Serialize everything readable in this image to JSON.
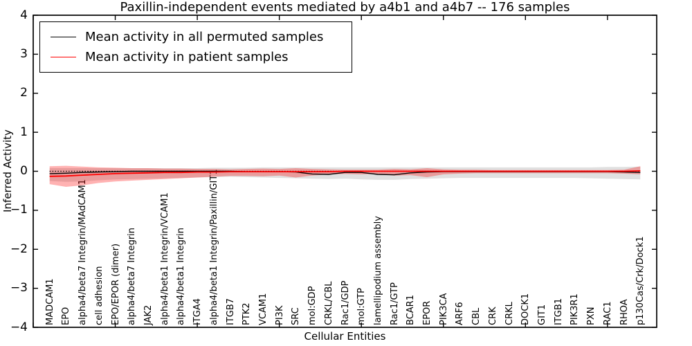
{
  "title": "Paxillin-independent events mediated by a4b1 and a4b7 -- 176 samples",
  "axes": {
    "xlabel": "Cellular Entities",
    "ylabel": "Inferred Activity",
    "ylim": [
      -4,
      4
    ],
    "yticks": [
      -4,
      -3,
      -2,
      -1,
      0,
      1,
      2,
      3,
      4
    ],
    "xlim": [
      0,
      38
    ],
    "xticks": [
      0,
      5,
      10,
      15,
      20,
      25,
      30,
      35
    ],
    "grid": false,
    "zero_reference_line": 0
  },
  "legend": {
    "position": "upper-left",
    "items": [
      {
        "label": "Mean activity in all permuted samples",
        "color": "#000000"
      },
      {
        "label": "Mean activity in patient samples",
        "color": "#ff0000"
      }
    ]
  },
  "colors": {
    "permuted_line": "#000000",
    "patient_line": "#ff0000",
    "permuted_band": "#999999",
    "patient_band": "#ff0000",
    "frame": "#000000",
    "background": "#ffffff"
  },
  "chart_data": {
    "type": "line",
    "title": "Paxillin-independent events mediated by a4b1 and a4b7 -- 176 samples",
    "xlabel": "Cellular Entities",
    "ylabel": "Inferred Activity",
    "ylim": [
      -4,
      4
    ],
    "legend_position": "upper left",
    "categories": [
      "MADCAM1",
      "EPO",
      "alpha4/beta7 Integrin/MAdCAM1",
      "cell adhesion",
      "EPO/EPOR (dimer)",
      "alpha4/beta7 Integrin",
      "JAK2",
      "alpha4/beta1 Integrin/VCAM1",
      "alpha4/beta1 Integrin",
      "ITGA4",
      "alpha4/beta1 Integrin/Paxillin/GIT1",
      "ITGB7",
      "PTK2",
      "VCAM1",
      "PI3K",
      "SRC",
      "mol:GDP",
      "CRKL/CBL",
      "Rac1/GDP",
      "mol:GTP",
      "lamellipodium assembly",
      "Rac1/GTP",
      "BCAR1",
      "EPOR",
      "PIK3CA",
      "ARF6",
      "CBL",
      "CRK",
      "CRKL",
      "DOCK1",
      "GIT1",
      "ITGB1",
      "PIK3R1",
      "PXN",
      "RAC1",
      "RHOA",
      "p130Cas/Crk/Dock1"
    ],
    "series": [
      {
        "name": "Mean activity in all permuted samples",
        "color": "#000000",
        "values": [
          -0.06,
          -0.05,
          -0.03,
          -0.02,
          -0.01,
          0,
          0,
          0,
          0,
          0,
          0,
          0,
          -0.01,
          -0.01,
          -0.01,
          -0.02,
          -0.07,
          -0.08,
          -0.03,
          -0.03,
          -0.08,
          -0.09,
          -0.04,
          -0.02,
          -0.01,
          -0.01,
          -0.01,
          -0.01,
          -0.01,
          -0.01,
          -0.01,
          -0.01,
          -0.01,
          -0.01,
          -0.01,
          -0.02,
          -0.03
        ]
      },
      {
        "name": "Mean activity in patient samples",
        "color": "#ff0000",
        "values": [
          -0.13,
          -0.12,
          -0.1,
          -0.08,
          -0.06,
          -0.05,
          -0.04,
          -0.03,
          -0.03,
          -0.02,
          -0.02,
          -0.01,
          -0.01,
          -0.01,
          -0.01,
          -0.01,
          -0.01,
          -0.01,
          0,
          0,
          0,
          0,
          0,
          0,
          0,
          0,
          0,
          0,
          0,
          0,
          0,
          0,
          0,
          0,
          0,
          0,
          0.01
        ]
      }
    ],
    "bands": [
      {
        "name": "permuted samples std band",
        "color": "#999999",
        "opacity": 0.3,
        "upper": [
          0.08,
          0.08,
          0.08,
          0.08,
          0.08,
          0.08,
          0.08,
          0.08,
          0.08,
          0.08,
          0.09,
          0.09,
          0.09,
          0.1,
          0.1,
          0.1,
          0.1,
          0.1,
          0.1,
          0.1,
          0.1,
          0.1,
          0.1,
          0.1,
          0.1,
          0.1,
          0.1,
          0.1,
          0.1,
          0.1,
          0.1,
          0.1,
          0.1,
          0.1,
          0.11,
          0.11,
          0.12
        ],
        "lower": [
          -0.25,
          -0.27,
          -0.26,
          -0.23,
          -0.21,
          -0.2,
          -0.19,
          -0.18,
          -0.17,
          -0.16,
          -0.15,
          -0.14,
          -0.15,
          -0.16,
          -0.17,
          -0.18,
          -0.19,
          -0.2,
          -0.19,
          -0.21,
          -0.22,
          -0.22,
          -0.2,
          -0.19,
          -0.18,
          -0.17,
          -0.17,
          -0.17,
          -0.17,
          -0.17,
          -0.17,
          -0.17,
          -0.17,
          -0.18,
          -0.19,
          -0.2,
          -0.21
        ]
      },
      {
        "name": "patient samples std band",
        "color": "#ff0000",
        "opacity": 0.3,
        "upper": [
          0.13,
          0.14,
          0.12,
          0.1,
          0.09,
          0.08,
          0.08,
          0.07,
          0.07,
          0.06,
          0.06,
          0.05,
          0.06,
          0.07,
          0.06,
          0.08,
          0.06,
          0.05,
          0.04,
          0.04,
          0.04,
          0.06,
          0.05,
          0.08,
          0.05,
          0.04,
          0.04,
          0.03,
          0.03,
          0.03,
          0.03,
          0.03,
          0.03,
          0.03,
          0.03,
          0.04,
          0.13
        ],
        "lower": [
          -0.33,
          -0.4,
          -0.36,
          -0.3,
          -0.26,
          -0.24,
          -0.22,
          -0.2,
          -0.18,
          -0.16,
          -0.14,
          -0.12,
          -0.12,
          -0.13,
          -0.11,
          -0.16,
          -0.11,
          -0.08,
          -0.07,
          -0.08,
          -0.07,
          -0.11,
          -0.1,
          -0.15,
          -0.08,
          -0.06,
          -0.05,
          -0.05,
          -0.05,
          -0.05,
          -0.05,
          -0.05,
          -0.05,
          -0.05,
          -0.05,
          -0.06,
          -0.08
        ]
      }
    ]
  }
}
